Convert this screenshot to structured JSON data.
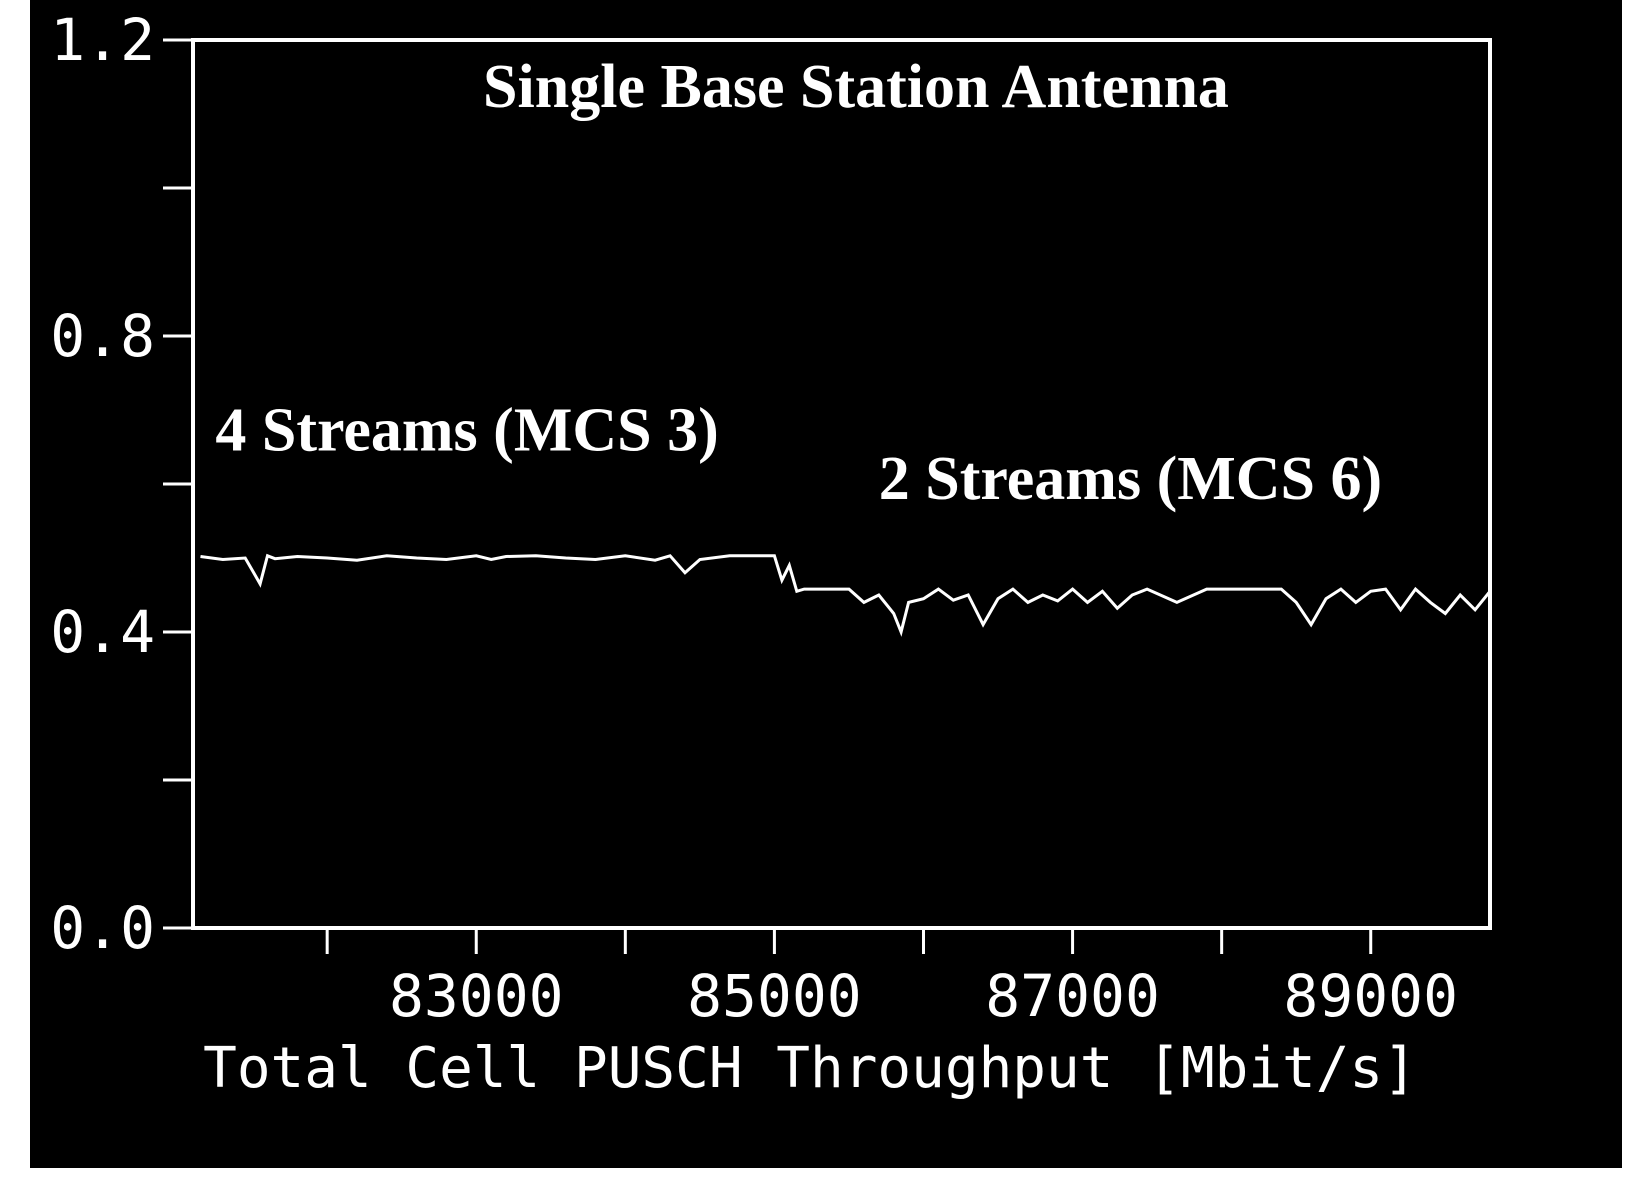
{
  "chart_data": {
    "type": "line",
    "title": "Single Base Station Antenna",
    "xlabel": "Total Cell PUSCH Throughput [Mbit/s]",
    "ylabel": "",
    "xlim": [
      81100,
      89800
    ],
    "ylim": [
      0.0,
      1.2
    ],
    "x_ticks": [
      82000,
      83000,
      84000,
      85000,
      86000,
      87000,
      88000,
      89000
    ],
    "x_tick_labels": [
      "",
      "83000",
      "",
      "85000",
      "",
      "87000",
      "",
      "89000"
    ],
    "y_ticks": [
      0.0,
      0.2,
      0.4,
      0.6,
      0.8,
      1.0,
      1.2
    ],
    "y_tick_labels": [
      "0.0",
      "",
      "0.4",
      "",
      "0.8",
      "",
      "1.2"
    ],
    "grid": false,
    "colors": {
      "background": "#000000",
      "foreground": "#ffffff"
    },
    "annotations": [
      {
        "text": "4 Streams (MCS 3)",
        "x": 81250,
        "y": 0.645
      },
      {
        "text": "2 Streams (MCS 6)",
        "x": 85700,
        "y": 0.58
      }
    ],
    "series": [
      {
        "x": [
          81150,
          81300,
          81450,
          81550,
          81600,
          81650,
          81800,
          82000,
          82200,
          82400,
          82600,
          82800,
          83000,
          83100,
          83200,
          83400,
          83600,
          83800,
          84000,
          84200,
          84300,
          84400,
          84500,
          84700,
          84900,
          85000,
          85050,
          85100,
          85150,
          85200,
          85300,
          85500,
          85600,
          85700,
          85800,
          85850,
          85900,
          86000,
          86100,
          86200,
          86300,
          86400,
          86500,
          86600,
          86700,
          86800,
          86900,
          87000,
          87100,
          87200,
          87300,
          87400,
          87500,
          87700,
          87900,
          88000,
          88200,
          88400,
          88500,
          88600,
          88700,
          88800,
          88900,
          89000,
          89100,
          89200,
          89300,
          89400,
          89500,
          89600,
          89700,
          89800
        ],
        "y": [
          0.502,
          0.498,
          0.5,
          0.465,
          0.503,
          0.499,
          0.502,
          0.5,
          0.497,
          0.503,
          0.5,
          0.498,
          0.503,
          0.498,
          0.502,
          0.503,
          0.5,
          0.498,
          0.503,
          0.497,
          0.503,
          0.48,
          0.498,
          0.503,
          0.503,
          0.503,
          0.47,
          0.49,
          0.455,
          0.458,
          0.458,
          0.458,
          0.44,
          0.45,
          0.425,
          0.4,
          0.44,
          0.445,
          0.458,
          0.443,
          0.45,
          0.41,
          0.445,
          0.458,
          0.44,
          0.45,
          0.442,
          0.458,
          0.44,
          0.455,
          0.432,
          0.45,
          0.458,
          0.44,
          0.458,
          0.458,
          0.458,
          0.458,
          0.44,
          0.41,
          0.445,
          0.458,
          0.44,
          0.455,
          0.458,
          0.43,
          0.458,
          0.44,
          0.425,
          0.45,
          0.43,
          0.455
        ]
      }
    ]
  }
}
